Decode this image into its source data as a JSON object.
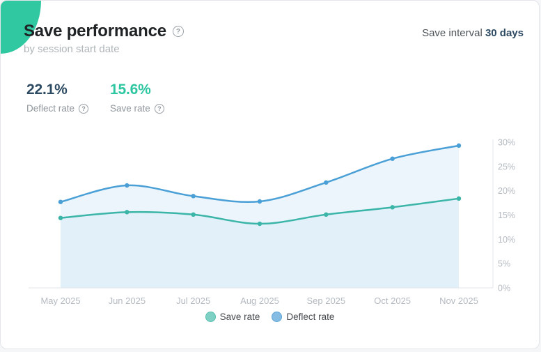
{
  "accent_color": "#2fc8a1",
  "header": {
    "title": "Save performance",
    "subtitle": "by session start date",
    "help_icon_glyph": "?",
    "interval_label": "Save interval",
    "interval_value": "30 days"
  },
  "stats": [
    {
      "value": "22.1%",
      "label": "Deflect rate",
      "color": "#2d4a63"
    },
    {
      "value": "15.6%",
      "label": "Save rate",
      "color": "#2cc6a0"
    }
  ],
  "chart_data": {
    "type": "line",
    "title": "Save performance by session start date",
    "x": [
      "May 2025",
      "Jun 2025",
      "Jul 2025",
      "Aug 2025",
      "Sep 2025",
      "Oct 2025",
      "Nov 2025"
    ],
    "series": [
      {
        "name": "Save rate",
        "color": "#3ab5a8",
        "values": [
          14.4,
          15.6,
          15.1,
          13.2,
          15.1,
          16.6,
          18.4
        ]
      },
      {
        "name": "Deflect rate",
        "color": "#4aa0d6",
        "values": [
          17.7,
          21.1,
          18.9,
          17.8,
          21.7,
          26.6,
          29.3
        ]
      }
    ],
    "ylim": [
      0,
      30
    ],
    "ytick_labels": [
      "0%",
      "5%",
      "10%",
      "15%",
      "20%",
      "25%",
      "30%"
    ],
    "ytick_values": [
      0,
      5,
      10,
      15,
      20,
      25,
      30
    ],
    "yaxis_side": "right",
    "grid": false,
    "area_fill": "#d8ebf7",
    "area_opacity": 0.5,
    "axis_color": "#e3e6e9",
    "tick_label_color": "#b4bac1",
    "legend_position": "bottom",
    "legend": [
      {
        "label": "Save rate",
        "fill": "#7ed0c4",
        "ring": "#57bdad"
      },
      {
        "label": "Deflect rate",
        "fill": "#84bce4",
        "ring": "#5aa3d6"
      }
    ]
  }
}
